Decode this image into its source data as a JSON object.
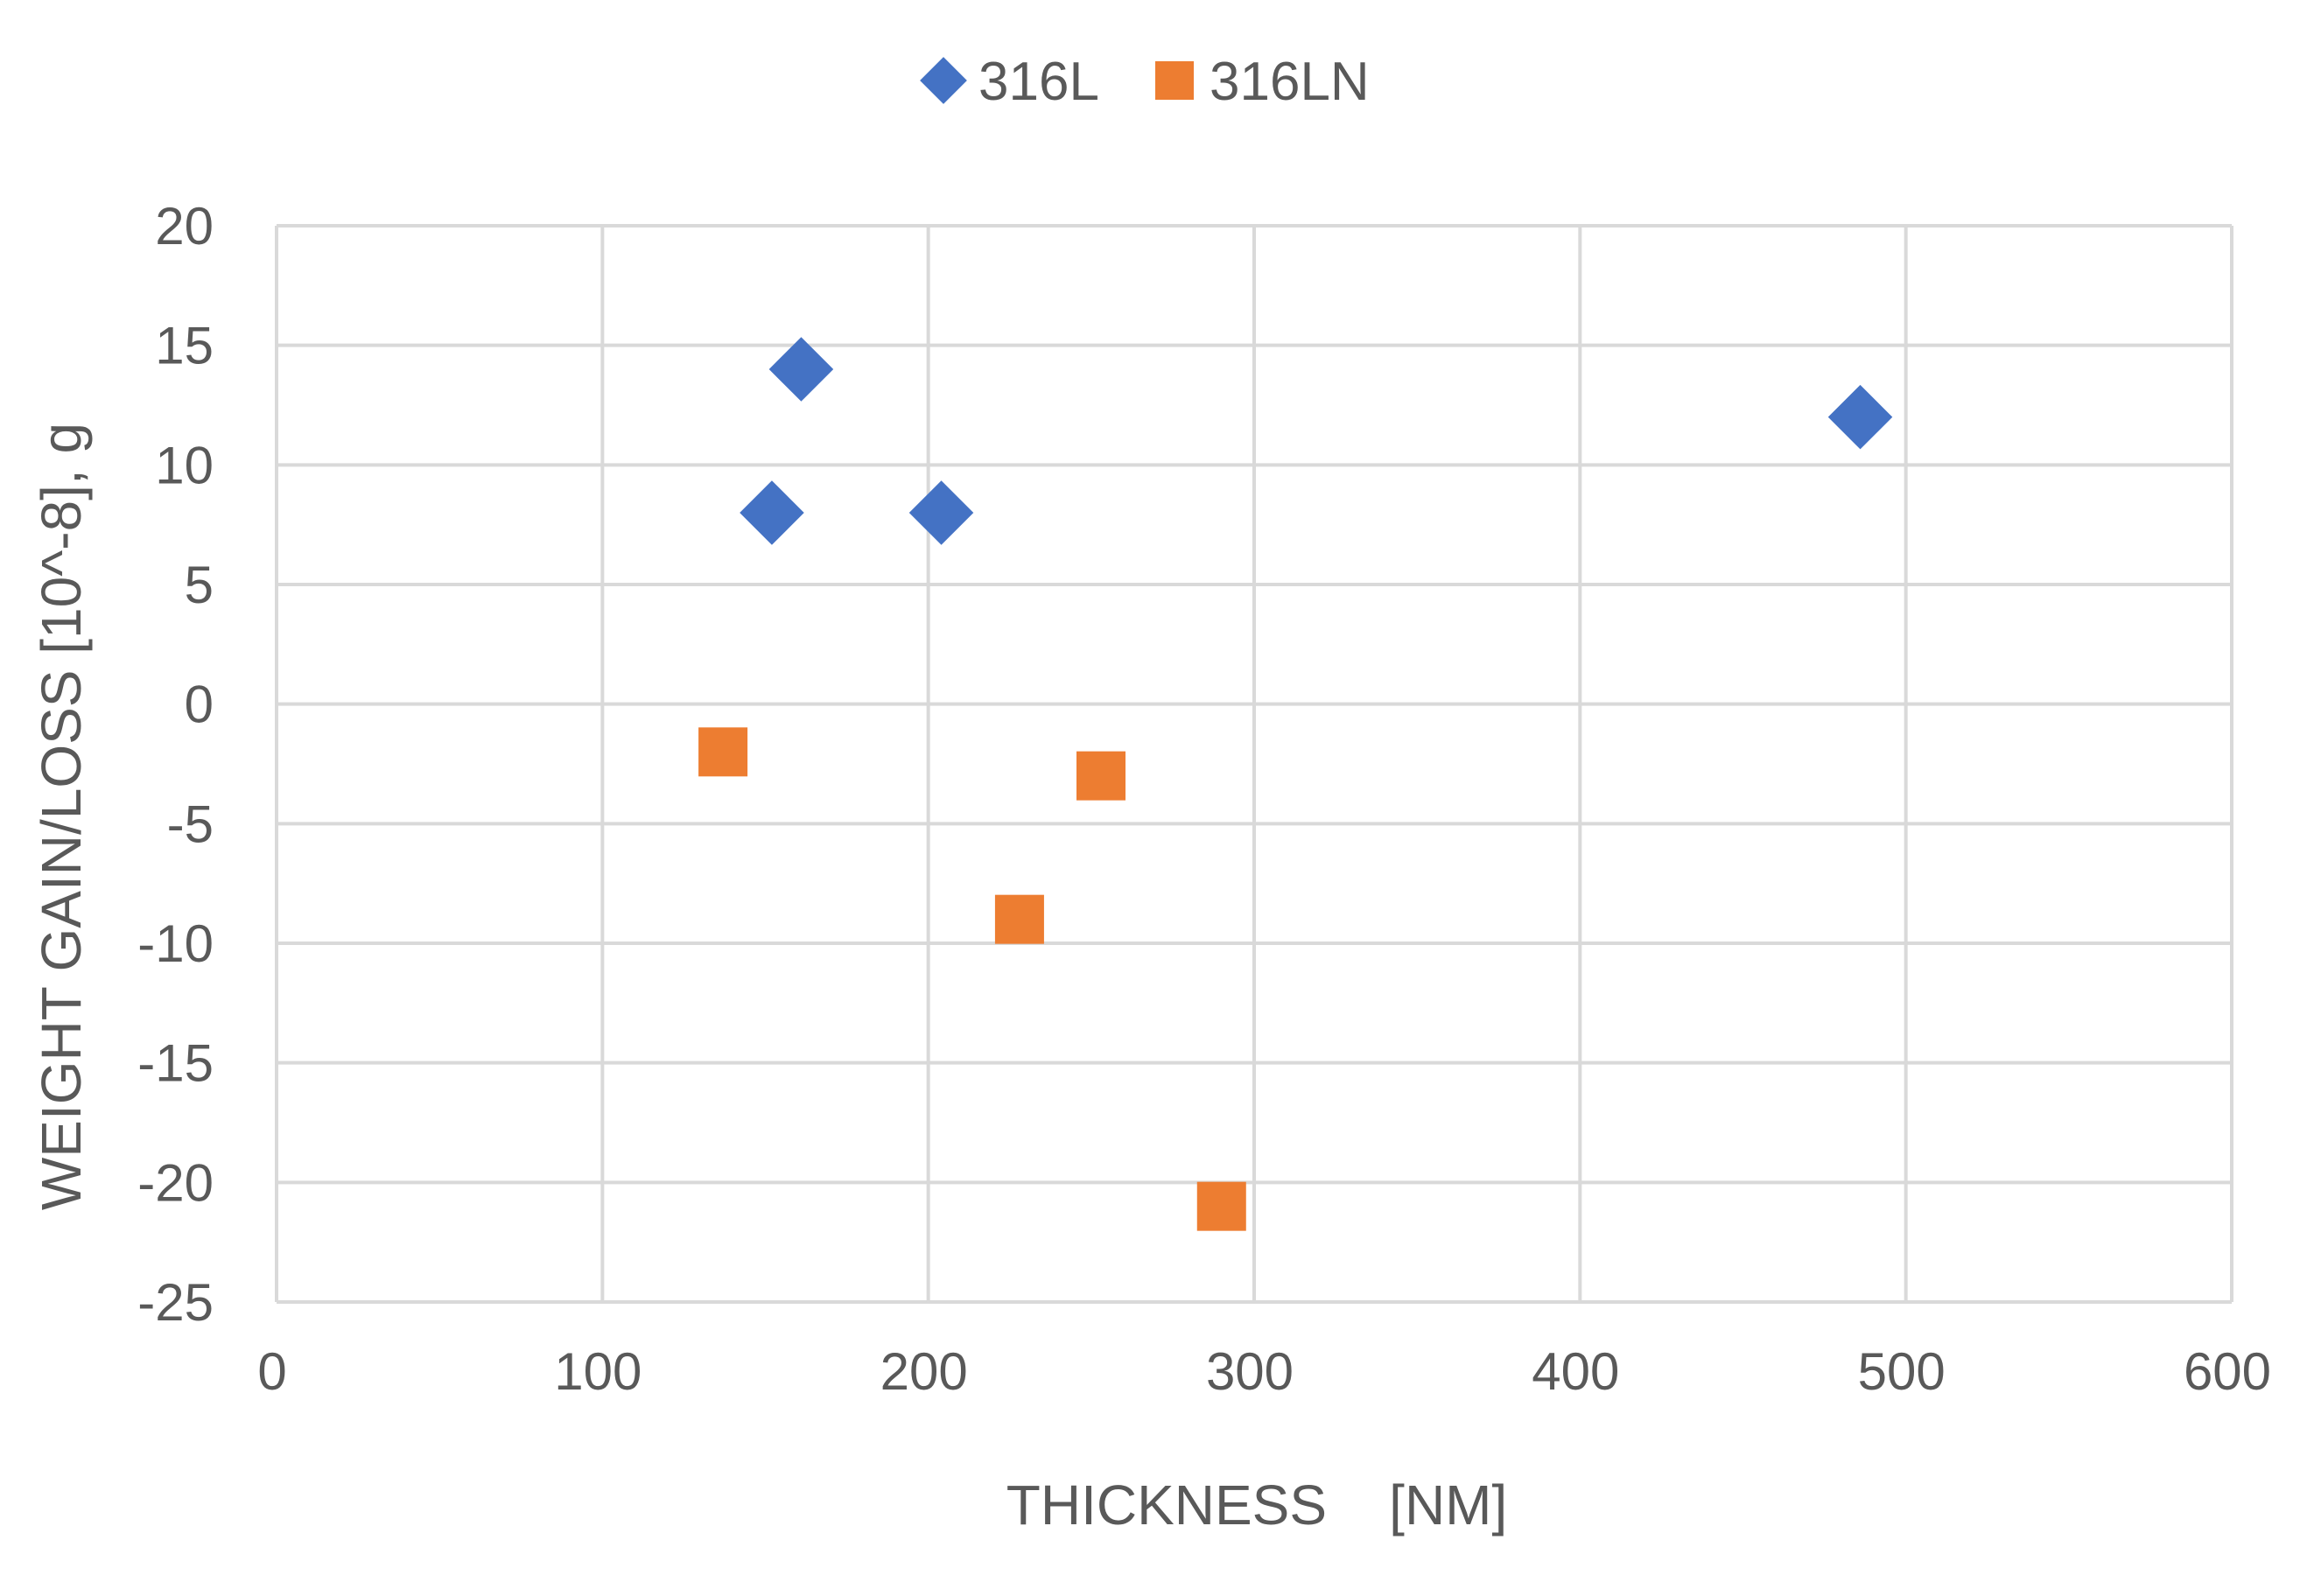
{
  "chart_data": {
    "type": "scatter",
    "title": "",
    "xlabel": "THICKNESS    [NM]",
    "ylabel": "WEIGHT GAIN/LOSS [10^-8], g",
    "xlim": [
      0,
      600
    ],
    "ylim": [
      -25,
      20
    ],
    "x_ticks": [
      0,
      100,
      200,
      300,
      400,
      500,
      600
    ],
    "y_ticks": [
      20,
      15,
      10,
      5,
      0,
      -5,
      -10,
      -15,
      -20,
      -25
    ],
    "x_tick_labels": [
      "0",
      "100",
      "200",
      "300",
      "400",
      "500",
      "600"
    ],
    "y_tick_labels": [
      "20",
      "15",
      "10",
      "5",
      "0",
      "-5",
      "-10",
      "-15",
      "-20",
      "-25"
    ],
    "grid": true,
    "legend_position": "top-center",
    "series": [
      {
        "name": "316L",
        "marker": "diamond",
        "color": "#4472C4",
        "points": [
          {
            "x": 152,
            "y": 8
          },
          {
            "x": 161,
            "y": 14
          },
          {
            "x": 204,
            "y": 8
          },
          {
            "x": 486,
            "y": 12
          }
        ]
      },
      {
        "name": "316LN",
        "marker": "square",
        "color": "#ED7D31",
        "points": [
          {
            "x": 137,
            "y": -2
          },
          {
            "x": 228,
            "y": -9
          },
          {
            "x": 253,
            "y": -3
          },
          {
            "x": 290,
            "y": -21
          }
        ]
      }
    ]
  }
}
